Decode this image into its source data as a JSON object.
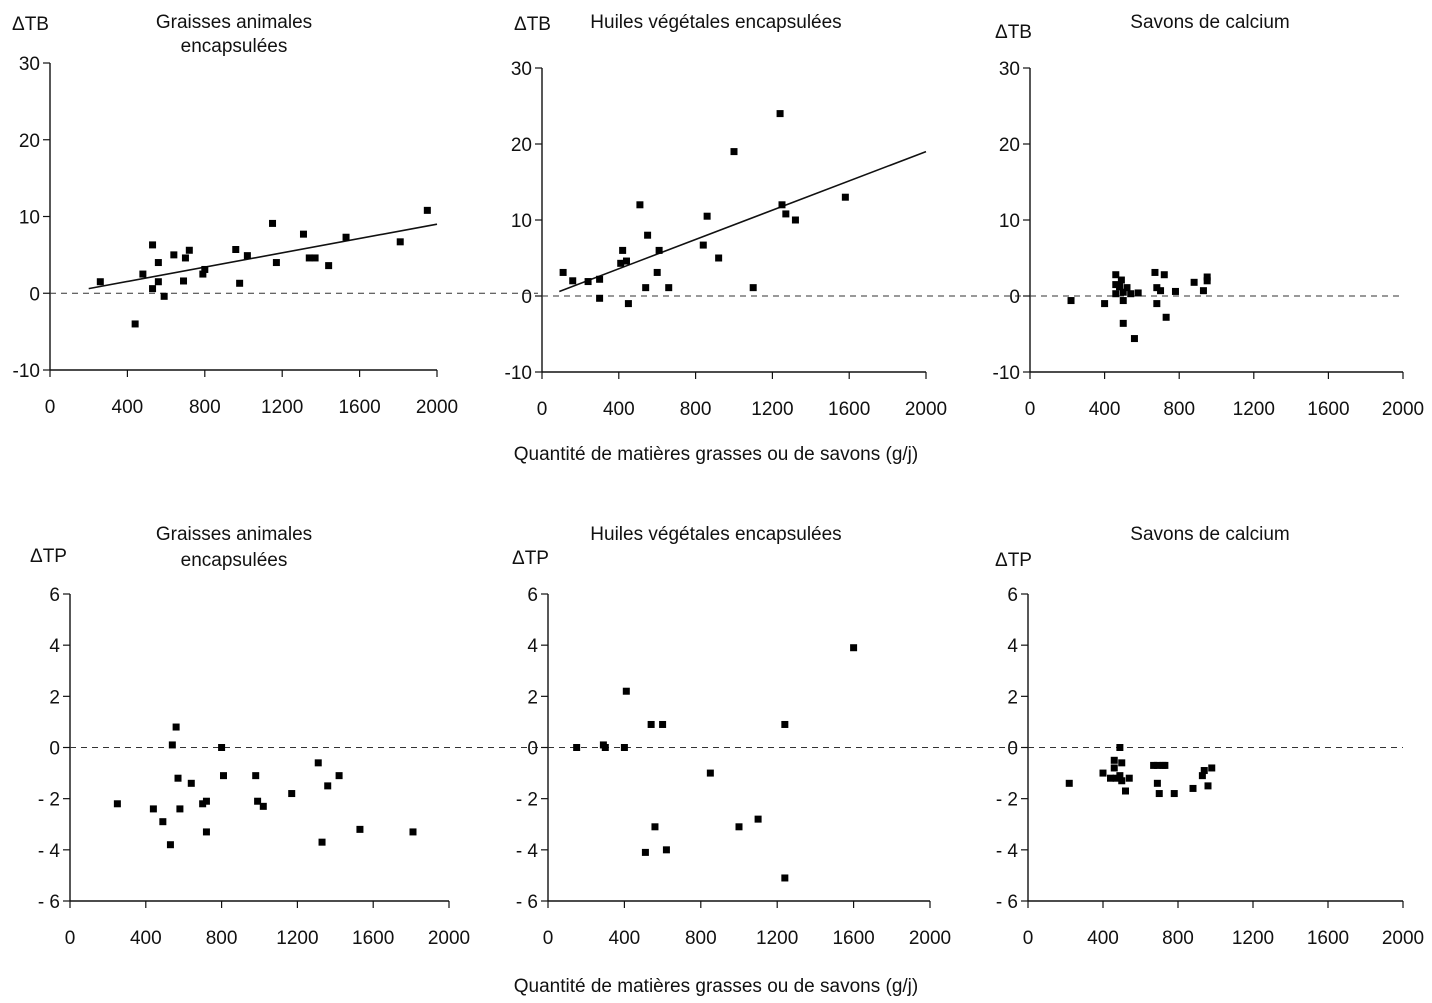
{
  "xlabel": "Quantité de matières grasses ou de savons (g/j)",
  "chart_data": [
    {
      "type": "scatter",
      "row": "top",
      "title_lines": [
        "Graisses animales",
        "encapsulées"
      ],
      "ylabel": "ΔTB",
      "xlim": [
        0,
        2000
      ],
      "ylim": [
        -10,
        30
      ],
      "xticks": [
        0,
        400,
        800,
        1200,
        1600,
        2000
      ],
      "xtick_labels": [
        "0",
        "400",
        "800",
        "1200",
        "1600",
        "2000"
      ],
      "yticks": [
        -10,
        0,
        10,
        20,
        30
      ],
      "ytick_labels": [
        "-10",
        "0",
        "10",
        "20",
        "30"
      ],
      "zero_line": true,
      "trendline": [
        [
          200,
          0.6
        ],
        [
          2000,
          9.0
        ]
      ],
      "points": [
        [
          260,
          1.5
        ],
        [
          440,
          -4
        ],
        [
          480,
          2.5
        ],
        [
          530,
          6.3
        ],
        [
          530,
          0.6
        ],
        [
          560,
          4
        ],
        [
          560,
          1.5
        ],
        [
          590,
          -0.4
        ],
        [
          640,
          5
        ],
        [
          690,
          1.6
        ],
        [
          700,
          4.6
        ],
        [
          720,
          5.6
        ],
        [
          790,
          2.5
        ],
        [
          800,
          3.1
        ],
        [
          960,
          5.7
        ],
        [
          980,
          1.3
        ],
        [
          1020,
          4.9
        ],
        [
          1150,
          9.1
        ],
        [
          1170,
          4
        ],
        [
          1310,
          7.7
        ],
        [
          1340,
          4.6
        ],
        [
          1370,
          4.6
        ],
        [
          1440,
          3.6
        ],
        [
          1530,
          7.3
        ],
        [
          1810,
          6.7
        ],
        [
          1950,
          10.8
        ]
      ]
    },
    {
      "type": "scatter",
      "row": "top",
      "title_lines": [
        "Huiles végétales encapsulées"
      ],
      "ylabel": "ΔTB",
      "xlim": [
        0,
        2000
      ],
      "ylim": [
        -10,
        30
      ],
      "xticks": [
        0,
        400,
        800,
        1200,
        1600,
        2000
      ],
      "xtick_labels": [
        "0",
        "400",
        "800",
        "1200",
        "1600",
        "2000"
      ],
      "yticks": [
        -10,
        0,
        10,
        20,
        30
      ],
      "ytick_labels": [
        "-10",
        "0",
        "10",
        "20",
        "30"
      ],
      "zero_line": true,
      "trendline": [
        [
          90,
          0.6
        ],
        [
          2000,
          19.0
        ]
      ],
      "points": [
        [
          110,
          3.1
        ],
        [
          160,
          2
        ],
        [
          240,
          1.9
        ],
        [
          300,
          2.2
        ],
        [
          300,
          -0.3
        ],
        [
          410,
          4.3
        ],
        [
          420,
          6
        ],
        [
          440,
          4.6
        ],
        [
          450,
          -1
        ],
        [
          510,
          12
        ],
        [
          540,
          1.1
        ],
        [
          550,
          8
        ],
        [
          600,
          3.1
        ],
        [
          610,
          6
        ],
        [
          660,
          1.1
        ],
        [
          840,
          6.7
        ],
        [
          860,
          10.5
        ],
        [
          920,
          5
        ],
        [
          1000,
          19
        ],
        [
          1100,
          1.1
        ],
        [
          1240,
          24
        ],
        [
          1250,
          12
        ],
        [
          1270,
          10.8
        ],
        [
          1320,
          10
        ],
        [
          1580,
          13
        ]
      ]
    },
    {
      "type": "scatter",
      "row": "top",
      "title_lines": [
        "Savons de calcium"
      ],
      "ylabel": "ΔTB",
      "xlim": [
        0,
        2000
      ],
      "ylim": [
        -10,
        30
      ],
      "xticks": [
        0,
        400,
        800,
        1200,
        1600,
        2000
      ],
      "xtick_labels": [
        "0",
        "400",
        "800",
        "1200",
        "1600",
        "2000"
      ],
      "yticks": [
        -10,
        0,
        10,
        20,
        30
      ],
      "ytick_labels": [
        "-10",
        "0",
        "10",
        "20",
        "30"
      ],
      "zero_line": true,
      "trendline": null,
      "points": [
        [
          220,
          -0.6
        ],
        [
          400,
          -1
        ],
        [
          460,
          2.8
        ],
        [
          460,
          1.5
        ],
        [
          460,
          0.3
        ],
        [
          480,
          1.2
        ],
        [
          490,
          2.1
        ],
        [
          500,
          -3.6
        ],
        [
          500,
          -0.6
        ],
        [
          500,
          0.5
        ],
        [
          520,
          1.1
        ],
        [
          540,
          0.3
        ],
        [
          560,
          -5.6
        ],
        [
          580,
          0.4
        ],
        [
          670,
          3.1
        ],
        [
          680,
          -1
        ],
        [
          680,
          1.1
        ],
        [
          700,
          0.7
        ],
        [
          720,
          2.8
        ],
        [
          730,
          -2.8
        ],
        [
          780,
          0.6
        ],
        [
          880,
          1.8
        ],
        [
          930,
          0.7
        ],
        [
          950,
          2.5
        ],
        [
          950,
          2
        ]
      ]
    },
    {
      "type": "scatter",
      "row": "bottom",
      "title_lines": [
        "Graisses animales",
        "encapsulées"
      ],
      "ylabel": "ΔTP",
      "xlim": [
        0,
        2000
      ],
      "ylim": [
        -6,
        6
      ],
      "xticks": [
        0,
        400,
        800,
        1200,
        1600,
        2000
      ],
      "xtick_labels": [
        "0",
        "400",
        "800",
        "1200",
        "1600",
        "2000"
      ],
      "yticks": [
        -6,
        -4,
        -2,
        0,
        2,
        4,
        6
      ],
      "ytick_labels": [
        "- 6",
        "- 4",
        "- 2",
        "0",
        "2",
        "4",
        "6"
      ],
      "zero_line": true,
      "trendline": null,
      "points": [
        [
          250,
          -2.2
        ],
        [
          440,
          -2.4
        ],
        [
          490,
          -2.9
        ],
        [
          530,
          -3.8
        ],
        [
          540,
          0.1
        ],
        [
          560,
          0.8
        ],
        [
          570,
          -1.2
        ],
        [
          580,
          -2.4
        ],
        [
          640,
          -1.4
        ],
        [
          700,
          -2.2
        ],
        [
          720,
          -2.1
        ],
        [
          720,
          -3.3
        ],
        [
          800,
          0
        ],
        [
          810,
          -1.1
        ],
        [
          980,
          -1.1
        ],
        [
          990,
          -2.1
        ],
        [
          1020,
          -2.3
        ],
        [
          1170,
          -1.8
        ],
        [
          1310,
          -0.6
        ],
        [
          1330,
          -3.7
        ],
        [
          1360,
          -1.5
        ],
        [
          1420,
          -1.1
        ],
        [
          1530,
          -3.2
        ],
        [
          1810,
          -3.3
        ]
      ]
    },
    {
      "type": "scatter",
      "row": "bottom",
      "title_lines": [
        "Huiles végétales encapsulées"
      ],
      "ylabel": "ΔTP",
      "xlim": [
        0,
        2000
      ],
      "ylim": [
        -6,
        6
      ],
      "xticks": [
        0,
        400,
        800,
        1200,
        1600,
        2000
      ],
      "xtick_labels": [
        "0",
        "400",
        "800",
        "1200",
        "1600",
        "2000"
      ],
      "yticks": [
        -6,
        -4,
        -2,
        0,
        2,
        4,
        6
      ],
      "ytick_labels": [
        "- 6",
        "- 4",
        "- 2",
        "0",
        "2",
        "4",
        "6"
      ],
      "zero_line": true,
      "trendline": null,
      "points": [
        [
          150,
          0
        ],
        [
          290,
          0.1
        ],
        [
          300,
          0
        ],
        [
          400,
          0
        ],
        [
          410,
          2.2
        ],
        [
          510,
          -4.1
        ],
        [
          540,
          0.9
        ],
        [
          560,
          -3.1
        ],
        [
          600,
          0.9
        ],
        [
          620,
          -4
        ],
        [
          850,
          -1
        ],
        [
          1000,
          -3.1
        ],
        [
          1100,
          -2.8
        ],
        [
          1240,
          0.9
        ],
        [
          1240,
          -5.1
        ],
        [
          1600,
          3.9
        ]
      ]
    },
    {
      "type": "scatter",
      "row": "bottom",
      "title_lines": [
        "Savons de calcium"
      ],
      "ylabel": "ΔTP",
      "xlim": [
        0,
        2000
      ],
      "ylim": [
        -6,
        6
      ],
      "xticks": [
        0,
        400,
        800,
        1200,
        1600,
        2000
      ],
      "xtick_labels": [
        "0",
        "400",
        "800",
        "1200",
        "1600",
        "2000"
      ],
      "yticks": [
        -6,
        -4,
        -2,
        0,
        2,
        4,
        6
      ],
      "ytick_labels": [
        "- 6",
        "- 4",
        "- 2",
        "0",
        "2",
        "4",
        "6"
      ],
      "zero_line": true,
      "trendline": null,
      "points": [
        [
          220,
          -1.4
        ],
        [
          400,
          -1
        ],
        [
          440,
          -1.2
        ],
        [
          460,
          -0.5
        ],
        [
          460,
          -0.8
        ],
        [
          470,
          -1.2
        ],
        [
          490,
          -1.1
        ],
        [
          490,
          0
        ],
        [
          500,
          -0.6
        ],
        [
          500,
          -1.3
        ],
        [
          520,
          -1.7
        ],
        [
          540,
          -1.2
        ],
        [
          670,
          -0.7
        ],
        [
          690,
          -0.7
        ],
        [
          690,
          -1.4
        ],
        [
          700,
          -1.8
        ],
        [
          720,
          -0.7
        ],
        [
          730,
          -0.7
        ],
        [
          780,
          -1.8
        ],
        [
          880,
          -1.6
        ],
        [
          930,
          -1.1
        ],
        [
          940,
          -0.9
        ],
        [
          960,
          -1.5
        ],
        [
          980,
          -0.8
        ]
      ]
    }
  ]
}
